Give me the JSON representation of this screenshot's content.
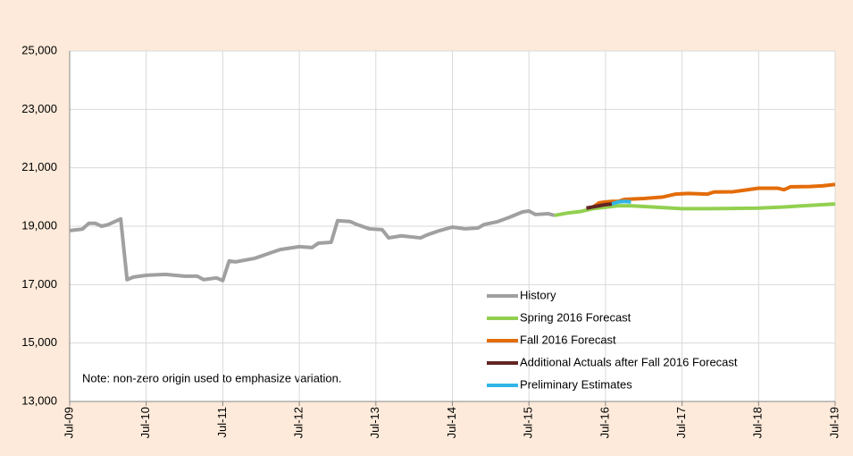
{
  "chart_data": {
    "type": "line",
    "note": "Note: non-zero origin used to emphasize variation.",
    "xlim": [
      0,
      120
    ],
    "xticks": [
      {
        "value": 0,
        "label": "Jul-09"
      },
      {
        "value": 12,
        "label": "Jul-10"
      },
      {
        "value": 24,
        "label": "Jul-11"
      },
      {
        "value": 36,
        "label": "Jul-12"
      },
      {
        "value": 48,
        "label": "Jul-13"
      },
      {
        "value": 60,
        "label": "Jul-14"
      },
      {
        "value": 72,
        "label": "Jul-15"
      },
      {
        "value": 84,
        "label": "Jul-16"
      },
      {
        "value": 96,
        "label": "Jul-17"
      },
      {
        "value": 108,
        "label": "Jul-18"
      },
      {
        "value": 120,
        "label": "Jul-19"
      }
    ],
    "ylim": [
      13000,
      25000
    ],
    "yticks": [
      {
        "value": 13000,
        "label": "13,000"
      },
      {
        "value": 15000,
        "label": "15,000"
      },
      {
        "value": 17000,
        "label": "17,000"
      },
      {
        "value": 19000,
        "label": "19,000"
      },
      {
        "value": 21000,
        "label": "21,000"
      },
      {
        "value": 23000,
        "label": "23,000"
      },
      {
        "value": 25000,
        "label": "25,000"
      }
    ],
    "grid": true,
    "series": [
      {
        "name": "History",
        "color": "#a0a0a0",
        "x": [
          0,
          2,
          3,
          4,
          5,
          6,
          8,
          9,
          10,
          12,
          15,
          18,
          20,
          21,
          23,
          24,
          25,
          26,
          29,
          31,
          33,
          36,
          38,
          39,
          41,
          42,
          44,
          45,
          47,
          49,
          50,
          52,
          55,
          56,
          58,
          60,
          62,
          64,
          65,
          67,
          69,
          71,
          72,
          73,
          75,
          76
        ],
        "values": [
          18850,
          18900,
          19100,
          19100,
          19000,
          19050,
          19250,
          17170,
          17260,
          17320,
          17350,
          17290,
          17290,
          17170,
          17230,
          17140,
          17810,
          17780,
          17900,
          18050,
          18200,
          18300,
          18270,
          18420,
          18450,
          19190,
          19160,
          19060,
          18910,
          18880,
          18600,
          18670,
          18600,
          18700,
          18850,
          18970,
          18910,
          18940,
          19060,
          19150,
          19310,
          19490,
          19520,
          19400,
          19430,
          19370
        ]
      },
      {
        "name": "Spring 2016 Forecast",
        "color": "#92d050",
        "x": [
          76,
          78,
          80,
          82,
          84,
          86,
          88,
          92,
          96,
          100,
          104,
          108,
          112,
          116,
          120
        ],
        "values": [
          19370,
          19450,
          19500,
          19600,
          19650,
          19700,
          19700,
          19650,
          19600,
          19600,
          19610,
          19620,
          19660,
          19710,
          19760
        ]
      },
      {
        "name": "Fall 2016 Forecast",
        "color": "#e36c09",
        "x": [
          82,
          83,
          84,
          85,
          86,
          87,
          90,
          93,
          95,
          97,
          100,
          101,
          104,
          106,
          108,
          111,
          112,
          113,
          116,
          118,
          120
        ],
        "values": [
          19650,
          19800,
          19830,
          19850,
          19850,
          19920,
          19950,
          20000,
          20100,
          20120,
          20100,
          20170,
          20180,
          20240,
          20300,
          20300,
          20250,
          20350,
          20360,
          20380,
          20430
        ]
      },
      {
        "name": "Additional Actuals after Fall 2016 Forecast",
        "color": "#632523",
        "x": [
          81,
          82,
          83,
          84,
          85
        ],
        "values": [
          19620,
          19660,
          19700,
          19740,
          19760
        ]
      },
      {
        "name": "Preliminary Estimates",
        "color": "#31b5e8",
        "x": [
          85,
          86,
          87,
          88
        ],
        "values": [
          19760,
          19830,
          19850,
          19830
        ]
      }
    ]
  }
}
